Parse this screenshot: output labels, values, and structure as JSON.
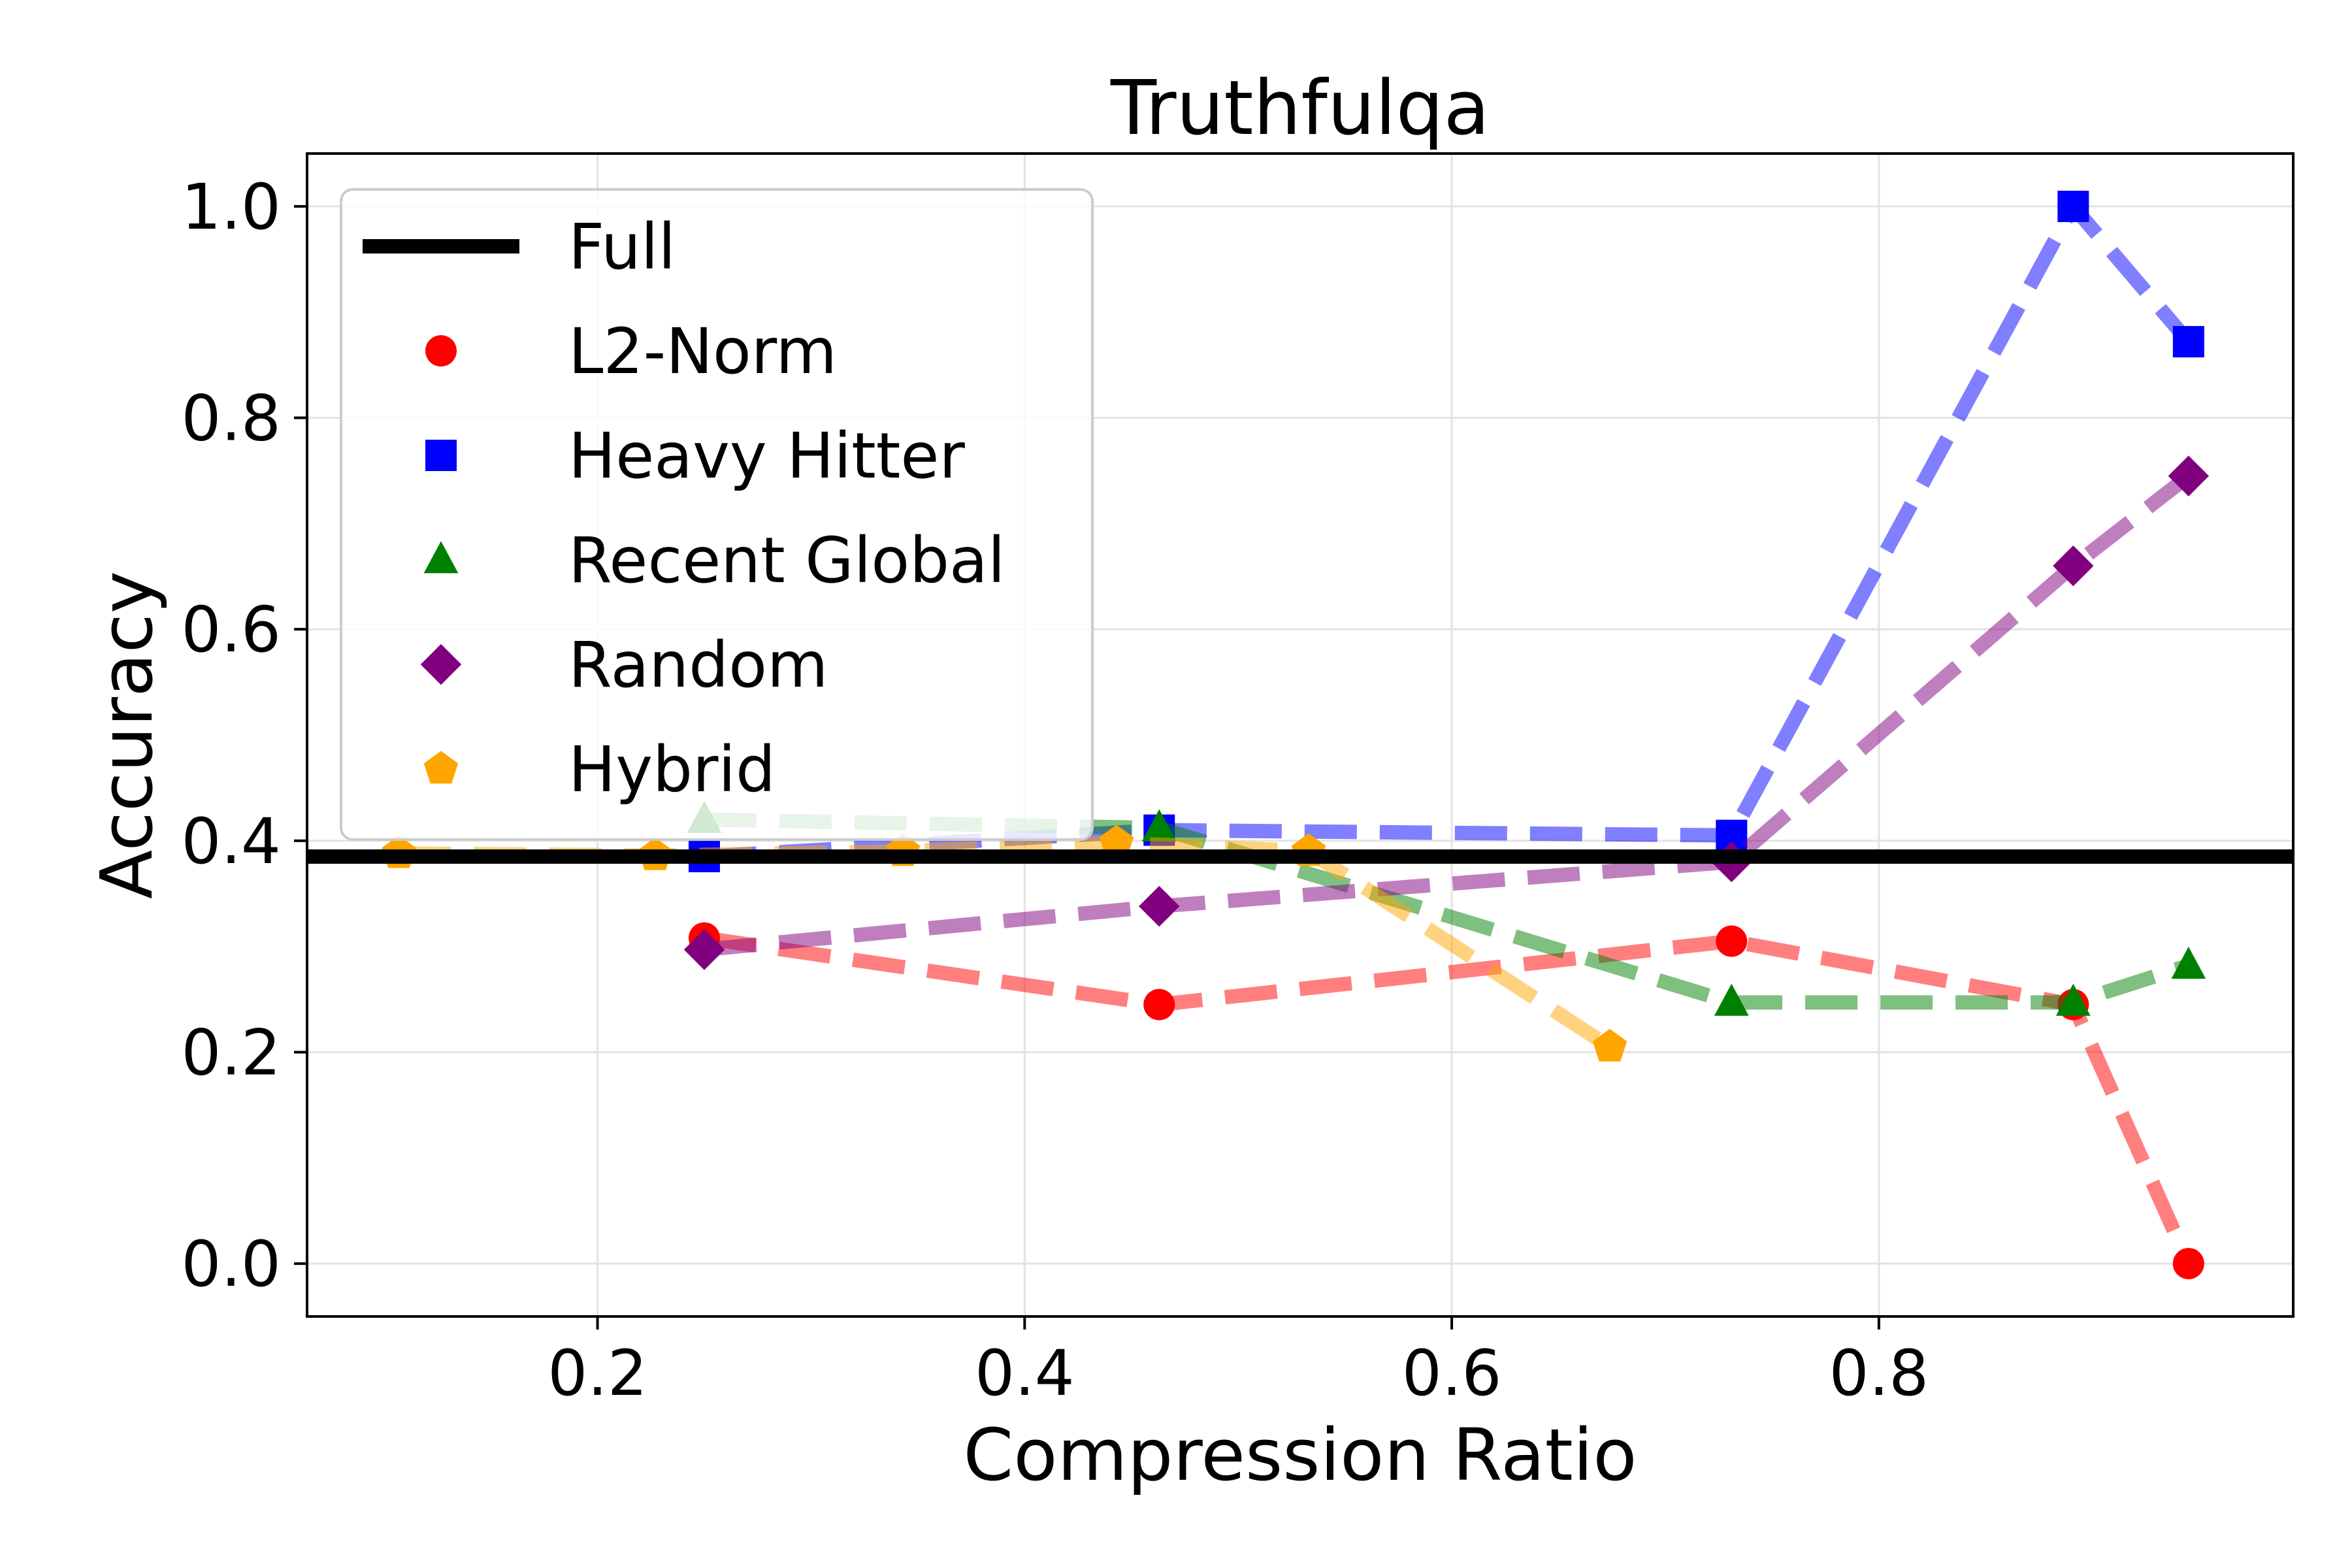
{
  "chart_data": {
    "type": "line",
    "title": "Truthfulqa",
    "xlabel": "Compression Ratio",
    "ylabel": "Accuracy",
    "xlim": [
      0.064,
      0.994
    ],
    "ylim": [
      -0.05,
      1.05
    ],
    "xticks": [
      "0.2",
      "0.4",
      "0.6",
      "0.8"
    ],
    "yticks": [
      "0.0",
      "0.2",
      "0.4",
      "0.6",
      "0.8",
      "1.0"
    ],
    "grid": true,
    "legend_position": "upper-left",
    "baseline": {
      "name": "Full",
      "y": 0.385,
      "color": "#000000"
    },
    "series": [
      {
        "name": "L2-Norm",
        "marker": "circle",
        "color": "#ff0000",
        "x": [
          0.25,
          0.463,
          0.731,
          0.891,
          0.945
        ],
        "y": [
          0.308,
          0.245,
          0.305,
          0.245,
          0.0
        ]
      },
      {
        "name": "Heavy Hitter",
        "marker": "square",
        "color": "#0000ff",
        "x": [
          0.25,
          0.463,
          0.731,
          0.891,
          0.945
        ],
        "y": [
          0.385,
          0.41,
          0.405,
          1.0,
          0.872
        ]
      },
      {
        "name": "Recent Global",
        "marker": "triangle",
        "color": "#008000",
        "x": [
          0.25,
          0.463,
          0.731,
          0.891,
          0.945
        ],
        "y": [
          0.42,
          0.412,
          0.247,
          0.247,
          0.282
        ]
      },
      {
        "name": "Random",
        "marker": "diamond",
        "color": "#800080",
        "x": [
          0.25,
          0.463,
          0.731,
          0.891,
          0.945
        ],
        "y": [
          0.297,
          0.338,
          0.38,
          0.66,
          0.745
        ]
      },
      {
        "name": "Hybrid",
        "marker": "pentagon",
        "color": "#ffa500",
        "x": [
          0.107,
          0.227,
          0.343,
          0.443,
          0.533,
          0.674
        ],
        "y": [
          0.388,
          0.386,
          0.39,
          0.398,
          0.39,
          0.205
        ]
      }
    ]
  }
}
